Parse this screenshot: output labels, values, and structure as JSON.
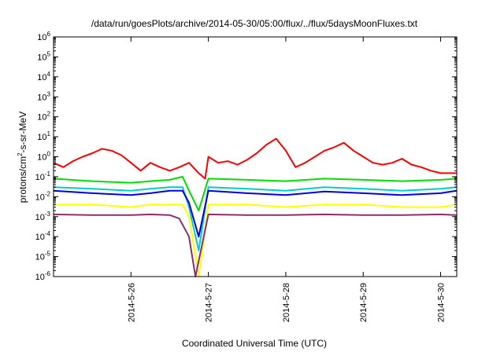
{
  "chart_data": {
    "type": "line",
    "title": "/data/run/goesPlots/archive/2014-05-30/05:00/flux/../flux/5daysMoonFluxes.txt",
    "xlabel": "Coordinated Universal Time (UTC)",
    "ylabel": {
      "pre": "protons/cm",
      "sup": "2",
      "post": "-s-sr-MeV"
    },
    "x_range_days": [
      "2014-05-25T00:00",
      "2014-05-30T05:00"
    ],
    "x_ticks": [
      "2014-5-26",
      "2014-5-27",
      "2014-5-28",
      "2014-5-29",
      "2014-5-30"
    ],
    "y_scale": "log",
    "y_range": [
      1e-06,
      1000000.0
    ],
    "y_ticks": [
      {
        "base": "10",
        "exp": "-6"
      },
      {
        "base": "10",
        "exp": "-5"
      },
      {
        "base": "10",
        "exp": "-4"
      },
      {
        "base": "10",
        "exp": "-3"
      },
      {
        "base": "10",
        "exp": "-2"
      },
      {
        "base": "10",
        "exp": "-1"
      },
      {
        "base": "10",
        "exp": "0"
      },
      {
        "base": "10",
        "exp": "1"
      },
      {
        "base": "10",
        "exp": "2"
      },
      {
        "base": "10",
        "exp": "3"
      },
      {
        "base": "10",
        "exp": "4"
      },
      {
        "base": "10",
        "exp": "5"
      },
      {
        "base": "10",
        "exp": "6"
      }
    ],
    "grid": false,
    "legend": "none",
    "series": [
      {
        "color": "#ff0000",
        "points": [
          [
            "2014-05-25T00:00",
            0.5
          ],
          [
            "2014-05-25T03:00",
            0.3
          ],
          [
            "2014-05-25T06:00",
            0.6
          ],
          [
            "2014-05-25T09:00",
            1.0
          ],
          [
            "2014-05-25T12:00",
            1.5
          ],
          [
            "2014-05-25T15:00",
            2.5
          ],
          [
            "2014-05-25T18:00",
            2.0
          ],
          [
            "2014-05-25T21:00",
            1.2
          ],
          [
            "2014-05-26T00:00",
            0.5
          ],
          [
            "2014-05-26T03:00",
            0.2
          ],
          [
            "2014-05-26T06:00",
            0.5
          ],
          [
            "2014-05-26T09:00",
            0.3
          ],
          [
            "2014-05-26T12:00",
            0.2
          ],
          [
            "2014-05-26T15:00",
            0.3
          ],
          [
            "2014-05-26T18:00",
            0.5
          ],
          [
            "2014-05-26T21:00",
            0.15
          ],
          [
            "2014-05-26T23:00",
            0.08
          ],
          [
            "2014-05-27T00:00",
            1.0
          ],
          [
            "2014-05-27T03:00",
            0.5
          ],
          [
            "2014-05-27T06:00",
            0.6
          ],
          [
            "2014-05-27T09:00",
            0.4
          ],
          [
            "2014-05-27T12:00",
            0.7
          ],
          [
            "2014-05-27T15:00",
            1.5
          ],
          [
            "2014-05-27T18:00",
            4.0
          ],
          [
            "2014-05-27T21:00",
            8.0
          ],
          [
            "2014-05-28T00:00",
            2.0
          ],
          [
            "2014-05-28T03:00",
            0.3
          ],
          [
            "2014-05-28T06:00",
            0.5
          ],
          [
            "2014-05-28T09:00",
            1.0
          ],
          [
            "2014-05-28T12:00",
            2.0
          ],
          [
            "2014-05-28T15:00",
            3.0
          ],
          [
            "2014-05-28T18:00",
            5.0
          ],
          [
            "2014-05-28T21:00",
            2.0
          ],
          [
            "2014-05-29T00:00",
            1.0
          ],
          [
            "2014-05-29T03:00",
            0.5
          ],
          [
            "2014-05-29T06:00",
            0.4
          ],
          [
            "2014-05-29T09:00",
            0.5
          ],
          [
            "2014-05-29T12:00",
            0.8
          ],
          [
            "2014-05-29T15:00",
            0.4
          ],
          [
            "2014-05-29T18:00",
            0.3
          ],
          [
            "2014-05-29T21:00",
            0.2
          ],
          [
            "2014-05-30T00:00",
            0.15
          ],
          [
            "2014-05-30T03:00",
            0.15
          ],
          [
            "2014-05-30T05:00",
            0.15
          ]
        ]
      },
      {
        "color": "#00dd00",
        "points": [
          [
            "2014-05-25T00:00",
            0.08
          ],
          [
            "2014-05-25T12:00",
            0.06
          ],
          [
            "2014-05-26T00:00",
            0.05
          ],
          [
            "2014-05-26T06:00",
            0.06
          ],
          [
            "2014-05-26T12:00",
            0.07
          ],
          [
            "2014-05-26T16:00",
            0.1
          ],
          [
            "2014-05-26T18:00",
            0.02
          ],
          [
            "2014-05-26T21:00",
            0.002
          ],
          [
            "2014-05-27T00:00",
            0.08
          ],
          [
            "2014-05-27T12:00",
            0.07
          ],
          [
            "2014-05-28T00:00",
            0.06
          ],
          [
            "2014-05-28T12:00",
            0.08
          ],
          [
            "2014-05-29T00:00",
            0.07
          ],
          [
            "2014-05-29T12:00",
            0.06
          ],
          [
            "2014-05-30T00:00",
            0.07
          ],
          [
            "2014-05-30T05:00",
            0.08
          ]
        ]
      },
      {
        "color": "#00cccc",
        "points": [
          [
            "2014-05-25T00:00",
            0.03
          ],
          [
            "2014-05-25T12:00",
            0.025
          ],
          [
            "2014-05-26T00:00",
            0.02
          ],
          [
            "2014-05-26T06:00",
            0.025
          ],
          [
            "2014-05-26T12:00",
            0.03
          ],
          [
            "2014-05-26T16:00",
            0.03
          ],
          [
            "2014-05-26T18:00",
            0.003
          ],
          [
            "2014-05-26T21:00",
            2e-05
          ],
          [
            "2014-05-27T00:00",
            0.03
          ],
          [
            "2014-05-27T12:00",
            0.025
          ],
          [
            "2014-05-28T00:00",
            0.02
          ],
          [
            "2014-05-28T12:00",
            0.03
          ],
          [
            "2014-05-29T00:00",
            0.025
          ],
          [
            "2014-05-29T12:00",
            0.02
          ],
          [
            "2014-05-30T00:00",
            0.025
          ],
          [
            "2014-05-30T05:00",
            0.03
          ]
        ]
      },
      {
        "color": "#0000dd",
        "points": [
          [
            "2014-05-25T00:00",
            0.02
          ],
          [
            "2014-05-25T12:00",
            0.015
          ],
          [
            "2014-05-26T00:00",
            0.012
          ],
          [
            "2014-05-26T06:00",
            0.015
          ],
          [
            "2014-05-26T12:00",
            0.02
          ],
          [
            "2014-05-26T16:00",
            0.02
          ],
          [
            "2014-05-26T18:00",
            0.005
          ],
          [
            "2014-05-26T21:00",
            0.0001
          ],
          [
            "2014-05-27T00:00",
            0.02
          ],
          [
            "2014-05-27T12:00",
            0.015
          ],
          [
            "2014-05-28T00:00",
            0.012
          ],
          [
            "2014-05-28T12:00",
            0.018
          ],
          [
            "2014-05-29T00:00",
            0.015
          ],
          [
            "2014-05-29T12:00",
            0.012
          ],
          [
            "2014-05-30T00:00",
            0.015
          ],
          [
            "2014-05-30T05:00",
            0.02
          ]
        ]
      },
      {
        "color": "#ffff00",
        "points": [
          [
            "2014-05-25T00:00",
            0.004
          ],
          [
            "2014-05-25T12:00",
            0.004
          ],
          [
            "2014-05-26T00:00",
            0.003
          ],
          [
            "2014-05-26T06:00",
            0.004
          ],
          [
            "2014-05-26T12:00",
            0.004
          ],
          [
            "2014-05-26T16:00",
            0.004
          ],
          [
            "2014-05-26T18:00",
            0.001
          ],
          [
            "2014-05-26T21:00",
            1e-06
          ],
          [
            "2014-05-27T00:00",
            0.004
          ],
          [
            "2014-05-27T12:00",
            0.004
          ],
          [
            "2014-05-28T00:00",
            0.003
          ],
          [
            "2014-05-28T12:00",
            0.004
          ],
          [
            "2014-05-29T00:00",
            0.004
          ],
          [
            "2014-05-29T12:00",
            0.003
          ],
          [
            "2014-05-30T00:00",
            0.003
          ],
          [
            "2014-05-30T05:00",
            0.004
          ]
        ]
      },
      {
        "color": "#8b2e6b",
        "points": [
          [
            "2014-05-25T00:00",
            0.0013
          ],
          [
            "2014-05-25T12:00",
            0.0012
          ],
          [
            "2014-05-26T00:00",
            0.0012
          ],
          [
            "2014-05-26T06:00",
            0.0013
          ],
          [
            "2014-05-26T12:00",
            0.0012
          ],
          [
            "2014-05-26T15:00",
            0.0008
          ],
          [
            "2014-05-26T18:00",
            0.0001
          ],
          [
            "2014-05-26T20:00",
            1e-06
          ],
          [
            "2014-05-27T00:00",
            0.0013
          ],
          [
            "2014-05-27T12:00",
            0.0012
          ],
          [
            "2014-05-28T00:00",
            0.0012
          ],
          [
            "2014-05-28T12:00",
            0.0013
          ],
          [
            "2014-05-29T00:00",
            0.0012
          ],
          [
            "2014-05-29T12:00",
            0.0012
          ],
          [
            "2014-05-30T00:00",
            0.0013
          ],
          [
            "2014-05-30T05:00",
            0.0012
          ]
        ]
      }
    ]
  }
}
